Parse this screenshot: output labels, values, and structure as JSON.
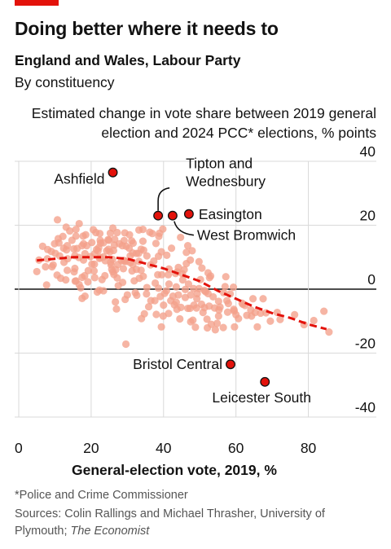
{
  "header": {
    "title": "Doing better where it needs to",
    "subtitle": "England and Wales, Labour Party",
    "subsubtitle": "By constituency",
    "accent_color": "#e3120b"
  },
  "footer": {
    "footnote": "*Police and Crime Commissioner",
    "source_text": "Sources: Colin Rallings and Michael Thrasher, University of Plymouth;",
    "source_italic": "The Economist"
  },
  "chart_data": {
    "type": "scatter",
    "ylabel": "Estimated change in vote share between 2019 general election and 2024 PCC* elections, % points",
    "xlabel": "General-election vote, 2019, %",
    "xlim": [
      0,
      90
    ],
    "ylim": [
      -40,
      40
    ],
    "x_ticks": [
      "0",
      "20",
      "40",
      "60",
      "80"
    ],
    "x_tick_values": [
      0,
      20,
      40,
      60,
      80
    ],
    "y_ticks": [
      "40",
      "20",
      "0",
      "-20",
      "-40"
    ],
    "y_tick_values": [
      40,
      20,
      0,
      -20,
      -40
    ],
    "grid": true,
    "point_color": "#f4a08a",
    "highlight_color": "#e3120b",
    "trend_color": "#e3120b",
    "trend": {
      "x": [
        5,
        10,
        15,
        20,
        25,
        30,
        35,
        40,
        45,
        50,
        55,
        60,
        65,
        70,
        75,
        80,
        85
      ],
      "y": [
        9,
        9.5,
        10,
        10,
        10,
        9.5,
        8,
        6.5,
        4.5,
        2.5,
        -0.5,
        -3,
        -5.5,
        -7.5,
        -9,
        -11,
        -12.5
      ]
    },
    "points": [
      [
        5,
        5.5
      ],
      [
        5.6,
        9.1
      ],
      [
        6.6,
        13.4
      ],
      [
        7.4,
        7
      ],
      [
        7.7,
        1.3
      ],
      [
        7.9,
        9.5
      ],
      [
        8,
        12.4
      ],
      [
        9,
        11.8
      ],
      [
        9.2,
        7
      ],
      [
        9.5,
        7.6
      ],
      [
        9.9,
        14.2
      ],
      [
        10.1,
        11.2
      ],
      [
        10.6,
        4.4
      ],
      [
        10.7,
        21.7
      ],
      [
        10.9,
        15.8
      ],
      [
        11.1,
        14.5
      ],
      [
        11.3,
        10.4
      ],
      [
        11.6,
        3.4
      ],
      [
        12.2,
        16.5
      ],
      [
        12.4,
        12.8
      ],
      [
        12.5,
        8.4
      ],
      [
        13,
        2.9
      ],
      [
        13.1,
        19.4
      ],
      [
        13.2,
        12.3
      ],
      [
        13.4,
        13.6
      ],
      [
        13.4,
        5.9
      ],
      [
        13.5,
        9.5
      ],
      [
        14.1,
        18.2
      ],
      [
        14.7,
        15.3
      ],
      [
        15.2,
        12.6
      ],
      [
        15.3,
        5.4
      ],
      [
        15.5,
        10.5
      ],
      [
        15.5,
        6.5
      ],
      [
        15.6,
        2.5
      ],
      [
        15.8,
        16.6
      ],
      [
        15.8,
        18.7
      ],
      [
        15.8,
        2.6
      ],
      [
        16.1,
        12.7
      ],
      [
        16.6,
        9.9
      ],
      [
        16.7,
        20.5
      ],
      [
        16.7,
        1.4
      ],
      [
        17.1,
        0.4
      ],
      [
        17.5,
        3.7
      ],
      [
        17.5,
        -2.9
      ],
      [
        17.5,
        13.6
      ],
      [
        17.8,
        16.6
      ],
      [
        17.9,
        14.2
      ],
      [
        17.9,
        9.1
      ],
      [
        18.2,
        4.2
      ],
      [
        18.3,
        -2.2
      ],
      [
        18.3,
        11.1
      ],
      [
        18.5,
        17
      ],
      [
        18.8,
        13.6
      ],
      [
        19.1,
        2.3
      ],
      [
        19.2,
        5.8
      ],
      [
        19.8,
        10.2
      ],
      [
        20.2,
        7.8
      ],
      [
        20.2,
        14.6
      ],
      [
        20.6,
        18.6
      ],
      [
        20.8,
        5.7
      ],
      [
        20.9,
        7.8
      ],
      [
        21,
        11.1
      ],
      [
        21,
        3.6
      ],
      [
        21.3,
        17.7
      ],
      [
        21.5,
        12.4
      ],
      [
        21.7,
        -0.9
      ],
      [
        21.9,
        12
      ],
      [
        22.1,
        13
      ],
      [
        22.3,
        -0.3
      ],
      [
        22.3,
        9.6
      ],
      [
        22.4,
        17.4
      ],
      [
        22.5,
        15.3
      ],
      [
        22.5,
        9.9
      ],
      [
        22.6,
        14.4
      ],
      [
        23,
        3
      ],
      [
        23.4,
        14.5
      ],
      [
        23.4,
        10.1
      ],
      [
        23.4,
        -0.5
      ],
      [
        23.8,
        4.2
      ],
      [
        23.9,
        8.9
      ],
      [
        24.3,
        12
      ],
      [
        24.7,
        15.5
      ],
      [
        24.8,
        12.5
      ],
      [
        24.9,
        15.3
      ],
      [
        25.2,
        11.7
      ],
      [
        25.3,
        17.5
      ],
      [
        25.4,
        8.4
      ],
      [
        25.5,
        7.6
      ],
      [
        25.7,
        6.2
      ],
      [
        25.9,
        9.3
      ],
      [
        26,
        5.4
      ],
      [
        26,
        19.1
      ],
      [
        26.2,
        12.1
      ],
      [
        26.3,
        4.6
      ],
      [
        26.4,
        13.8
      ],
      [
        26.5,
        15.6
      ],
      [
        26.7,
        -4
      ],
      [
        26.8,
        6.1
      ],
      [
        27,
        -6.2
      ],
      [
        27.2,
        17.7
      ],
      [
        27.2,
        3.5
      ],
      [
        27.4,
        7.7
      ],
      [
        27.5,
        1.1
      ],
      [
        27.8,
        14.2
      ],
      [
        28.4,
        8.9
      ],
      [
        28.6,
        13.6
      ],
      [
        28.7,
        2.1
      ],
      [
        28.9,
        6.4
      ],
      [
        29,
        9
      ],
      [
        29.1,
        15.2
      ],
      [
        29.3,
        17.6
      ],
      [
        29.3,
        8.7
      ],
      [
        29.4,
        -3.2
      ],
      [
        29.6,
        -17.2
      ],
      [
        29.7,
        13.4
      ],
      [
        29.7,
        8.7
      ],
      [
        30,
        -1.8
      ],
      [
        30.5,
        12.8
      ],
      [
        30.6,
        17
      ],
      [
        30.8,
        8.3
      ],
      [
        30.8,
        10.4
      ],
      [
        31.2,
        15.1
      ],
      [
        31.3,
        5.7
      ],
      [
        31.5,
        11.3
      ],
      [
        31.5,
        7.7
      ],
      [
        31.6,
        14.4
      ],
      [
        31.9,
        2.6
      ],
      [
        32.2,
        -1.1
      ],
      [
        32.5,
        11.2
      ],
      [
        32.5,
        6.2
      ],
      [
        32.6,
        -1.9
      ],
      [
        33.1,
        11.2
      ],
      [
        33.2,
        18.5
      ],
      [
        33.2,
        8.7
      ],
      [
        33.3,
        3.4
      ],
      [
        33.8,
        5.9
      ],
      [
        33.8,
        12.5
      ],
      [
        33.9,
        -9.2
      ],
      [
        34.3,
        15
      ],
      [
        34.3,
        18.7
      ],
      [
        34.4,
        4
      ],
      [
        34.5,
        12.2
      ],
      [
        34.7,
        -7.7
      ],
      [
        35.3,
        -1.5
      ],
      [
        35.4,
        0.5
      ],
      [
        35.4,
        10.4
      ],
      [
        35.9,
        -5.5
      ],
      [
        36.2,
        17.8
      ],
      [
        36.4,
        7.6
      ],
      [
        36.5,
        -3.6
      ],
      [
        36.9,
        17.4
      ],
      [
        37.3,
        8.8
      ],
      [
        37.6,
        -3.6
      ],
      [
        37.7,
        1.9
      ],
      [
        37.9,
        14.3
      ],
      [
        38,
        -7.9
      ],
      [
        38.4,
        4.5
      ],
      [
        38.6,
        0.3
      ],
      [
        38.6,
        10.3
      ],
      [
        38.7,
        16.5
      ],
      [
        38.9,
        17.5
      ],
      [
        39.1,
        -2.3
      ],
      [
        39.4,
        -11.8
      ],
      [
        39.4,
        11.7
      ],
      [
        39.5,
        4.5
      ],
      [
        39.8,
        18.8
      ],
      [
        39.9,
        -8.4
      ],
      [
        40,
        -5
      ],
      [
        40.3,
        -1.3
      ],
      [
        40.8,
        -0.5
      ],
      [
        40.9,
        10.6
      ],
      [
        41.3,
        4.5
      ],
      [
        41.4,
        -7.6
      ],
      [
        41.5,
        6.3
      ],
      [
        41.5,
        1.6
      ],
      [
        42,
        -3.6
      ],
      [
        42.2,
        12.8
      ],
      [
        42.6,
        -2.2
      ],
      [
        43,
        -4.9
      ],
      [
        43.3,
        4.9
      ],
      [
        43.5,
        -4.1
      ],
      [
        43.5,
        0.7
      ],
      [
        43.7,
        -6.3
      ],
      [
        43.8,
        5.4
      ],
      [
        44.1,
        6.8
      ],
      [
        44.1,
        -1.8
      ],
      [
        44.5,
        -9.3
      ],
      [
        44.7,
        16.2
      ],
      [
        44.8,
        -5.7
      ],
      [
        45.2,
        4.8
      ],
      [
        45.3,
        2.9
      ],
      [
        45.7,
        6.1
      ],
      [
        46,
        -0.1
      ],
      [
        46,
        -2.6
      ],
      [
        46.3,
        8
      ],
      [
        46.3,
        11.5
      ],
      [
        46.7,
        -6
      ],
      [
        46.7,
        13.6
      ],
      [
        46.9,
        1.6
      ],
      [
        47.3,
        -6
      ],
      [
        47.4,
        9.1
      ],
      [
        47.5,
        -10.2
      ],
      [
        47.5,
        -1.8
      ],
      [
        47.9,
        12
      ],
      [
        48.1,
        -9.7
      ],
      [
        48.3,
        0.2
      ],
      [
        48.4,
        -5
      ],
      [
        48.8,
        -11.9
      ],
      [
        49.1,
        -5.9
      ],
      [
        49.2,
        -3
      ],
      [
        49.3,
        -1.4
      ],
      [
        49.8,
        8.6
      ],
      [
        49.8,
        0.2
      ],
      [
        50.2,
        3
      ],
      [
        50.5,
        -4.7
      ],
      [
        50.6,
        6.6
      ],
      [
        50.9,
        -7.3
      ],
      [
        51.3,
        -0.4
      ],
      [
        51.3,
        -5.8
      ],
      [
        51.6,
        -0.8
      ],
      [
        52,
        -9.4
      ],
      [
        52.1,
        -12.1
      ],
      [
        52.3,
        5.1
      ],
      [
        52.3,
        -1.4
      ],
      [
        52.6,
        -5.3
      ],
      [
        52.7,
        3.6
      ],
      [
        53,
        4.1
      ],
      [
        53.2,
        -11
      ],
      [
        53.7,
        -2.4
      ],
      [
        54.1,
        -5.9
      ],
      [
        54.3,
        -12.7
      ],
      [
        54.8,
        -10.7
      ],
      [
        55.2,
        -3.8
      ],
      [
        55.2,
        -8.4
      ],
      [
        55.3,
        -6.5
      ],
      [
        55.6,
        -5.6
      ],
      [
        56.5,
        -12
      ],
      [
        56.6,
        -1.1
      ],
      [
        57,
        0.8
      ],
      [
        57.2,
        3.9
      ],
      [
        57.5,
        -3.6
      ],
      [
        57.7,
        -7.2
      ],
      [
        57.9,
        -4.5
      ],
      [
        58.4,
        -1.5
      ],
      [
        59.3,
        0.6
      ],
      [
        59.4,
        -6.3
      ],
      [
        59.5,
        -6.8
      ],
      [
        59.6,
        -11.8
      ],
      [
        60,
        -8
      ],
      [
        60.7,
        -9.2
      ],
      [
        61.7,
        -4.4
      ],
      [
        61.9,
        -4.7
      ],
      [
        62.5,
        -5.1
      ],
      [
        63,
        -8.2
      ],
      [
        64.1,
        -6.5
      ],
      [
        64.3,
        -8.4
      ],
      [
        64.7,
        -3
      ],
      [
        65.3,
        -7.3
      ],
      [
        65.9,
        -11.8
      ],
      [
        66.8,
        -7.5
      ],
      [
        67.5,
        -3
      ],
      [
        68.3,
        -7.4
      ],
      [
        69.5,
        -10
      ],
      [
        71.4,
        -7.3
      ],
      [
        72.2,
        -9.5
      ],
      [
        76.2,
        -8
      ],
      [
        78.8,
        -11.1
      ],
      [
        81.5,
        -9.8
      ],
      [
        84.3,
        -6.9
      ],
      [
        85.7,
        -13.4
      ]
    ],
    "highlights": [
      {
        "label": "Ashfield",
        "x": 26,
        "y": 36.5
      },
      {
        "label": "Tipton and Wednesbury",
        "label_line1": "Tipton and",
        "label_line2": "Wednesbury",
        "x": 38.5,
        "y": 23
      },
      {
        "label": "West Bromwich",
        "x": 42.5,
        "y": 23
      },
      {
        "label": "Easington",
        "x": 47,
        "y": 23.5
      },
      {
        "label": "Bristol Central",
        "x": 58.5,
        "y": -23.5
      },
      {
        "label": "Leicester South",
        "x": 68,
        "y": -29
      }
    ]
  }
}
